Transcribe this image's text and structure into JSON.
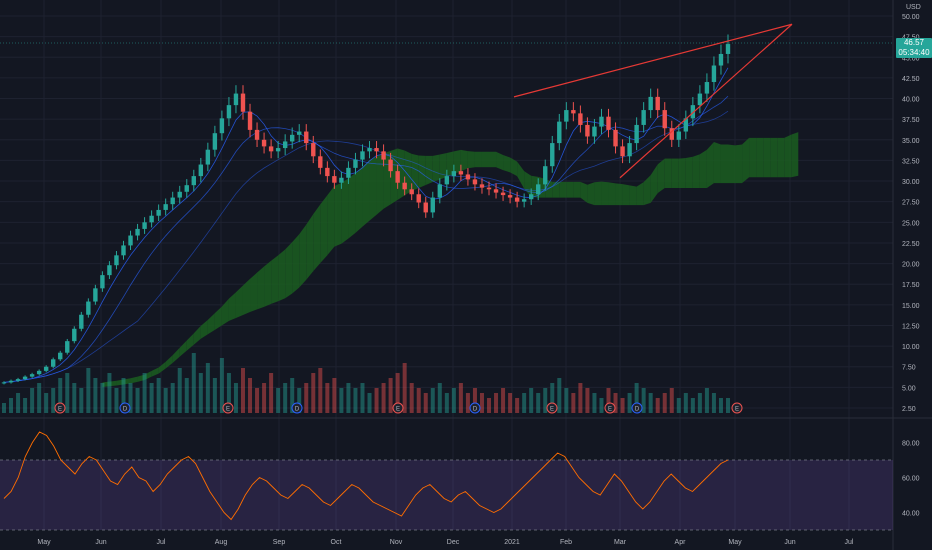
{
  "currency": "USD",
  "last_price": "46.57",
  "countdown": "05:34:40",
  "colors": {
    "background": "#131722",
    "grid": "#1e2230",
    "up": "#26a69a",
    "down": "#ef5350",
    "kumo_bull": "#1b5e20",
    "kumo_bear": "#b71c1c",
    "trendline": "#e53935",
    "rsi_band": "#7e57c2",
    "rsi_line": "#ff6d00",
    "ma": "#2962ff",
    "vol_ma": "#ff9800"
  },
  "chart_data": [
    {
      "type": "candlestick",
      "ylim": [
        2.5,
        50
      ],
      "y_ticks": [
        "50.00",
        "47.50",
        "45.00",
        "42.50",
        "40.00",
        "37.50",
        "35.00",
        "32.50",
        "30.00",
        "27.50",
        "25.00",
        "22.50",
        "20.00",
        "17.50",
        "15.00",
        "12.50",
        "10.00",
        "7.50",
        "5.00",
        "2.50"
      ],
      "x_ticks": [
        "May",
        "Jun",
        "Jul",
        "Aug",
        "Sep",
        "Oct",
        "Nov",
        "Dec",
        "2021",
        "Feb",
        "Mar",
        "Apr",
        "May",
        "Jun",
        "Jul"
      ],
      "close": [
        5.6,
        5.8,
        6.0,
        6.3,
        6.6,
        7.0,
        7.5,
        8.4,
        9.2,
        10.6,
        12.1,
        13.8,
        15.4,
        17.0,
        18.6,
        19.8,
        21.0,
        22.2,
        23.4,
        24.2,
        25.0,
        25.8,
        26.5,
        27.2,
        28.0,
        28.7,
        29.5,
        30.6,
        32.0,
        33.8,
        35.8,
        37.6,
        39.2,
        40.6,
        38.4,
        36.2,
        35.0,
        34.2,
        33.6,
        34.0,
        34.8,
        35.6,
        36.0,
        34.6,
        33.0,
        31.6,
        30.6,
        29.8,
        30.4,
        31.6,
        32.6,
        33.6,
        34.0,
        33.6,
        32.6,
        31.2,
        29.8,
        29.0,
        28.4,
        27.4,
        26.2,
        28.0,
        29.6,
        30.6,
        31.2,
        30.8,
        30.2,
        29.6,
        29.2,
        29.0,
        28.6,
        28.3,
        28.0,
        27.5,
        27.8,
        28.4,
        29.6,
        31.8,
        34.6,
        37.2,
        38.6,
        38.2,
        36.8,
        35.4,
        36.6,
        37.8,
        36.2,
        34.2,
        33.0,
        34.6,
        36.8,
        38.6,
        40.2,
        38.6,
        36.4,
        35.0,
        36.0,
        37.6,
        39.2,
        40.6,
        42.0,
        44.0,
        45.4,
        46.6
      ],
      "open": [
        5.5,
        5.6,
        5.8,
        6.0,
        6.3,
        6.6,
        7.0,
        7.5,
        8.4,
        9.2,
        10.6,
        12.1,
        13.8,
        15.4,
        17.0,
        18.6,
        19.8,
        21.0,
        22.2,
        23.4,
        24.2,
        25.0,
        25.8,
        26.5,
        27.2,
        28.0,
        28.7,
        29.5,
        30.6,
        32.0,
        33.8,
        35.8,
        37.6,
        39.2,
        40.6,
        38.4,
        36.2,
        35.0,
        34.2,
        33.6,
        34.0,
        34.8,
        35.6,
        36.0,
        34.6,
        33.0,
        31.6,
        30.6,
        29.8,
        30.4,
        31.6,
        32.6,
        33.6,
        34.0,
        33.6,
        32.6,
        31.2,
        29.8,
        29.0,
        28.4,
        27.4,
        26.2,
        28.0,
        29.6,
        30.6,
        31.2,
        30.8,
        30.2,
        29.6,
        29.2,
        29.0,
        28.6,
        28.3,
        28.0,
        27.5,
        27.8,
        28.4,
        29.6,
        31.8,
        34.6,
        37.2,
        38.6,
        38.2,
        36.8,
        35.4,
        36.6,
        37.8,
        36.2,
        34.2,
        33.0,
        34.6,
        36.8,
        38.6,
        40.2,
        38.6,
        36.4,
        35.0,
        36.0,
        37.6,
        39.2,
        40.6,
        42.0,
        44.0,
        45.4
      ],
      "volume": [
        2,
        3,
        4,
        3,
        5,
        6,
        4,
        5,
        7,
        8,
        6,
        5,
        9,
        7,
        6,
        8,
        5,
        7,
        6,
        5,
        8,
        6,
        7,
        5,
        6,
        9,
        7,
        12,
        8,
        10,
        7,
        11,
        8,
        6,
        9,
        7,
        5,
        6,
        8,
        5,
        6,
        7,
        5,
        6,
        8,
        9,
        6,
        7,
        5,
        6,
        5,
        6,
        4,
        5,
        6,
        7,
        8,
        10,
        6,
        5,
        4,
        5,
        6,
        4,
        5,
        6,
        4,
        5,
        4,
        3,
        4,
        5,
        4,
        3,
        4,
        5,
        4,
        5,
        6,
        7,
        5,
        4,
        6,
        5,
        4,
        3,
        5,
        4,
        3,
        4,
        6,
        5,
        4,
        3,
        4,
        5,
        3,
        4,
        3,
        4,
        5,
        4,
        3,
        3
      ],
      "rsi": {
        "ylim": [
          30,
          90
        ],
        "y_ticks": [
          "80.00",
          "60.00",
          "40.00"
        ],
        "bands": [
          70,
          30
        ],
        "values": [
          48,
          52,
          60,
          72,
          80,
          86,
          84,
          78,
          70,
          66,
          62,
          68,
          72,
          70,
          64,
          58,
          56,
          62,
          66,
          60,
          58,
          52,
          56,
          62,
          66,
          70,
          72,
          68,
          60,
          52,
          46,
          40,
          36,
          42,
          50,
          56,
          60,
          58,
          54,
          50,
          48,
          52,
          56,
          54,
          50,
          46,
          44,
          48,
          52,
          56,
          54,
          50,
          46,
          44,
          42,
          40,
          38,
          44,
          50,
          54,
          56,
          52,
          48,
          46,
          50,
          52,
          48,
          44,
          42,
          40,
          42,
          46,
          50,
          54,
          58,
          62,
          66,
          70,
          74,
          72,
          66,
          60,
          56,
          52,
          50,
          56,
          62,
          58,
          52,
          46,
          42,
          46,
          52,
          58,
          62,
          58,
          54,
          52,
          56,
          60,
          64,
          68,
          70
        ]
      }
    }
  ]
}
